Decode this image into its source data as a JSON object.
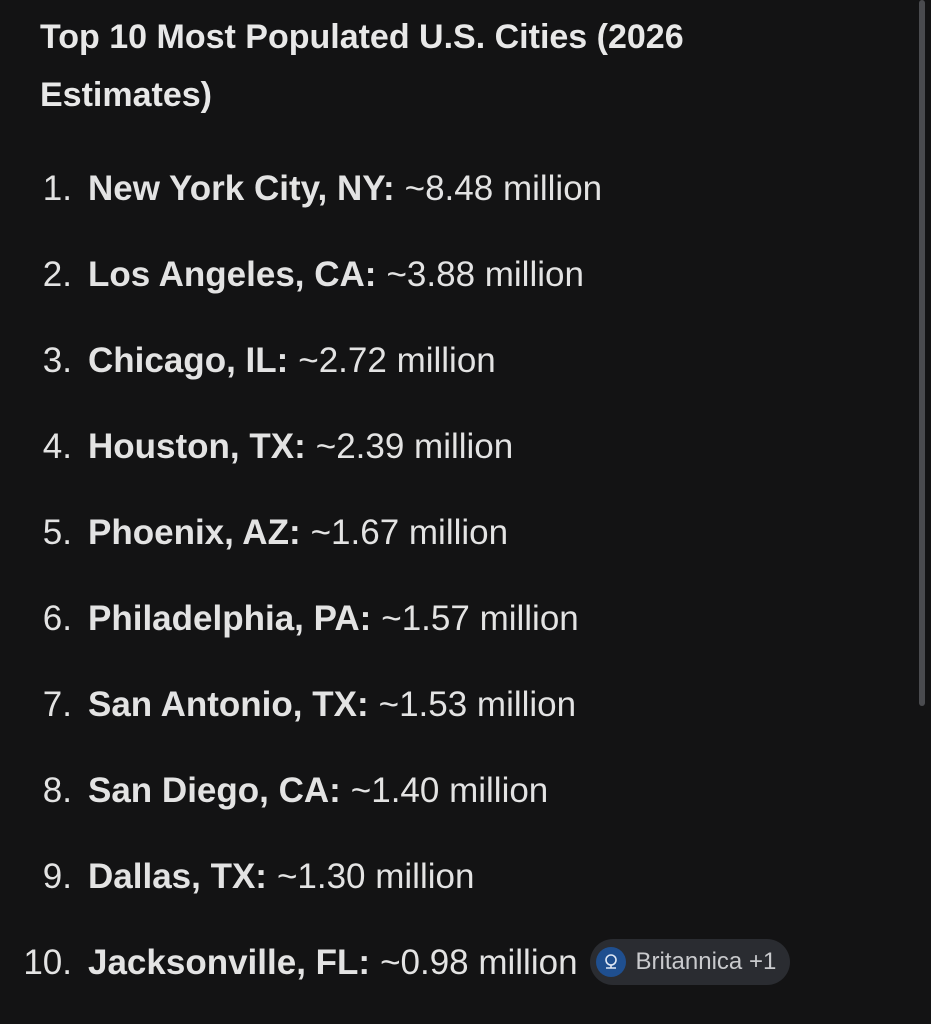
{
  "header": {
    "title": "Top 10 Most Populated U.S. Cities (2026 Estimates)"
  },
  "items": [
    {
      "marker": "1.",
      "name": "New York City, NY:",
      "value": "~8.48 million"
    },
    {
      "marker": "2.",
      "name": "Los Angeles, CA:",
      "value": "~3.88 million"
    },
    {
      "marker": "3.",
      "name": "Chicago, IL:",
      "value": "~2.72 million"
    },
    {
      "marker": "4.",
      "name": "Houston, TX:",
      "value": "~2.39 million"
    },
    {
      "marker": "5.",
      "name": "Phoenix, AZ:",
      "value": "~1.67 million"
    },
    {
      "marker": "6.",
      "name": "Philadelphia, PA:",
      "value": "~1.57 million"
    },
    {
      "marker": "7.",
      "name": "San Antonio, TX:",
      "value": "~1.53 million"
    },
    {
      "marker": "8.",
      "name": "San Diego, CA:",
      "value": "~1.40 million"
    },
    {
      "marker": "9.",
      "name": "Dallas, TX:",
      "value": "~1.30 million"
    },
    {
      "marker": "10.",
      "name": "Jacksonville, FL:",
      "value": "~0.98 million"
    }
  ],
  "citation": {
    "label": "Britannica +1"
  }
}
